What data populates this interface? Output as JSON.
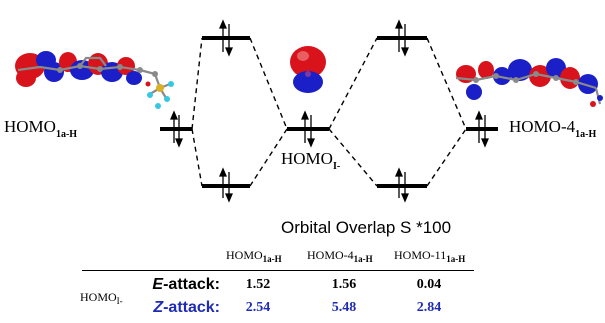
{
  "diagram": {
    "labels": {
      "left_main": "HOMO",
      "left_sub": "1a-H",
      "middle_main": "HOMO",
      "middle_sub": "I-",
      "right_main": "HOMO-4",
      "right_sub": "1a-H"
    }
  },
  "table": {
    "title": "Orbital Overlap S *100",
    "headers": [
      {
        "main": "HOMO",
        "sub": "1a-H"
      },
      {
        "main": "HOMO-4",
        "sub": "1a-H"
      },
      {
        "main": "HOMO-11",
        "sub": "1a-H"
      }
    ],
    "row_group_main": "HOMO",
    "row_group_sub": "I-",
    "rows": [
      {
        "prefix": "E",
        "suffix": "-attack:",
        "values": [
          "1.52",
          "1.56",
          "0.04"
        ],
        "color": "#000000"
      },
      {
        "prefix": "Z",
        "suffix": "-attack:",
        "values": [
          "2.54",
          "5.48",
          "2.84"
        ],
        "color": "#1f2bb5"
      }
    ]
  },
  "colors": {
    "orbital_red": "#d8131b",
    "orbital_blue": "#1a1fc8",
    "atom_gray": "#8a8a8a",
    "fluorine": "#36c8e0",
    "sulfur": "#d8b126"
  }
}
